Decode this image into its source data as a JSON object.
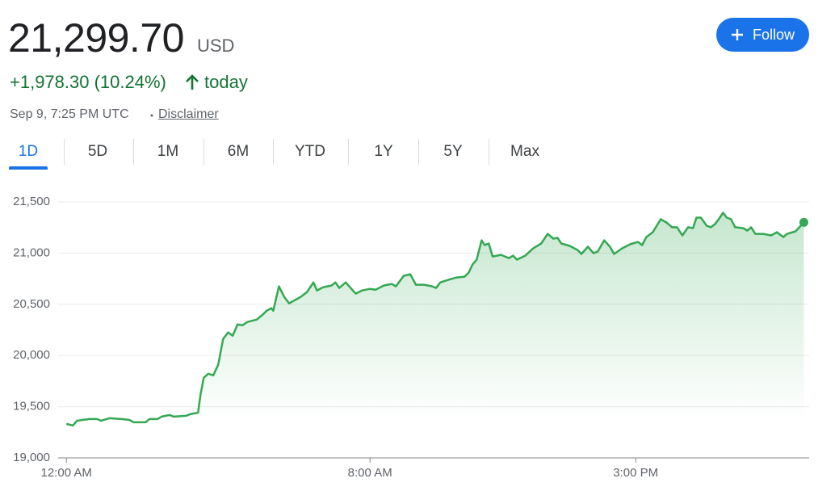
{
  "price": "21,299.70",
  "currency": "USD",
  "follow_button": "Follow",
  "change": "+1,978.30 (10.24%)",
  "change_period": "today",
  "timestamp": "Sep 9, 7:25 PM UTC",
  "disclaimer": "Disclaimer",
  "tabs": [
    "1D",
    "5D",
    "1M",
    "6M",
    "YTD",
    "1Y",
    "5Y",
    "Max"
  ],
  "selected_tab_index": 0,
  "chart_data": {
    "type": "line",
    "color": "#34a853",
    "grid": true,
    "x": [
      0,
      0.17,
      0.28,
      0.6,
      0.81,
      0.91,
      1.13,
      1.45,
      1.66,
      1.77,
      2.09,
      2.19,
      2.4,
      2.51,
      2.72,
      2.83,
      3.15,
      3.26,
      3.47,
      3.53,
      3.62,
      3.74,
      3.87,
      4.0,
      4.13,
      4.26,
      4.38,
      4.51,
      4.64,
      4.77,
      5.02,
      5.17,
      5.28,
      5.4,
      5.45,
      5.6,
      5.74,
      5.87,
      6.02,
      6.17,
      6.34,
      6.51,
      6.6,
      6.77,
      6.98,
      7.09,
      7.19,
      7.36,
      7.51,
      7.62,
      7.79,
      8.0,
      8.15,
      8.36,
      8.57,
      8.68,
      8.89,
      9.06,
      9.21,
      9.43,
      9.64,
      9.74,
      9.85,
      10.06,
      10.28,
      10.49,
      10.6,
      10.7,
      10.81,
      10.94,
      11.02,
      11.13,
      11.23,
      11.45,
      11.66,
      11.77,
      11.87,
      12.09,
      12.3,
      12.51,
      12.68,
      12.83,
      12.94,
      13.04,
      13.26,
      13.47,
      13.57,
      13.74,
      13.89,
      14.0,
      14.17,
      14.32,
      14.43,
      14.64,
      14.85,
      15.06,
      15.17,
      15.28,
      15.45,
      15.66,
      15.81,
      15.96,
      16.09,
      16.23,
      16.38,
      16.51,
      16.6,
      16.72,
      16.87,
      16.98,
      17.09,
      17.19,
      17.3,
      17.4,
      17.51,
      17.62,
      17.83,
      17.94,
      18.04,
      18.15,
      18.36,
      18.57,
      18.72,
      18.89,
      18.99,
      19.21,
      19.43
    ],
    "values": [
      19332,
      19316,
      19363,
      19379,
      19379,
      19363,
      19387,
      19379,
      19371,
      19348,
      19348,
      19379,
      19379,
      19403,
      19419,
      19403,
      19411,
      19427,
      19442,
      19608,
      19782,
      19822,
      19806,
      19909,
      20161,
      20225,
      20193,
      20304,
      20296,
      20327,
      20351,
      20398,
      20438,
      20462,
      20438,
      20675,
      20572,
      20509,
      20541,
      20572,
      20620,
      20714,
      20635,
      20667,
      20683,
      20714,
      20659,
      20714,
      20651,
      20604,
      20635,
      20651,
      20643,
      20683,
      20699,
      20675,
      20778,
      20793,
      20691,
      20691,
      20675,
      20659,
      20714,
      20738,
      20762,
      20770,
      20809,
      20888,
      20936,
      21125,
      21078,
      21094,
      20967,
      20983,
      20951,
      20975,
      20936,
      20975,
      21046,
      21094,
      21188,
      21141,
      21149,
      21094,
      21070,
      21030,
      20991,
      21062,
      20999,
      21015,
      21125,
      21062,
      20991,
      21046,
      21086,
      21109,
      21078,
      21157,
      21204,
      21331,
      21299,
      21252,
      21252,
      21173,
      21252,
      21244,
      21346,
      21346,
      21267,
      21252,
      21283,
      21331,
      21394,
      21346,
      21331,
      21252,
      21244,
      21220,
      21252,
      21188,
      21188,
      21173,
      21204,
      21157,
      21188,
      21212,
      21299.7
    ],
    "xlim": [
      -0.43,
      19.57
    ],
    "xticks": [
      {
        "value": 0,
        "label": "12:00 AM"
      },
      {
        "value": 8,
        "label": "8:00 AM"
      },
      {
        "value": 15,
        "label": "3:00 PM"
      }
    ],
    "ylim": [
      19000,
      21500
    ],
    "yticks": [
      {
        "value": 19000,
        "label": "19,000"
      },
      {
        "value": 19500,
        "label": "19,500"
      },
      {
        "value": 20000,
        "label": "20,000"
      },
      {
        "value": 20500,
        "label": "20,500"
      },
      {
        "value": 21000,
        "label": "21,000"
      },
      {
        "value": 21500,
        "label": "21,500"
      }
    ]
  }
}
